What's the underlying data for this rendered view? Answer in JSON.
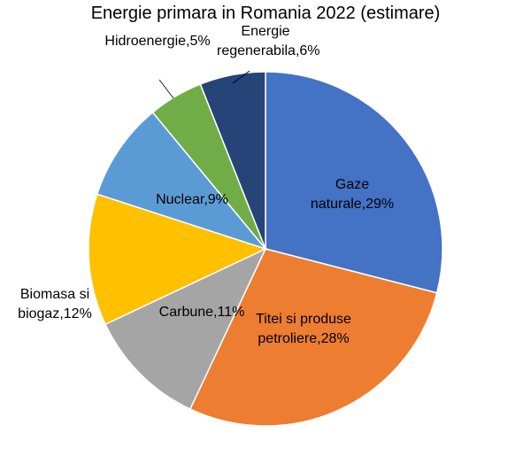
{
  "chart_data": {
    "type": "pie",
    "title": "Energie primara in Romania 2022 (estimare)",
    "categories": [
      "Gaze naturale",
      "Titei si produse petroliere",
      "Carbune",
      "Biomasa si biogaz",
      "Nuclear",
      "Hidroenergie",
      "Energie regenerabila"
    ],
    "values": [
      29,
      28,
      11,
      12,
      9,
      5,
      6
    ],
    "value_labels": [
      "29%",
      "28%",
      "11%",
      "12%",
      "9%",
      "5%",
      "6%"
    ],
    "label_separator": ",",
    "colors": [
      "#4472c4",
      "#ed7d31",
      "#a5a5a5",
      "#ffc000",
      "#5b9bd5",
      "#70ad47",
      "#264478"
    ]
  }
}
